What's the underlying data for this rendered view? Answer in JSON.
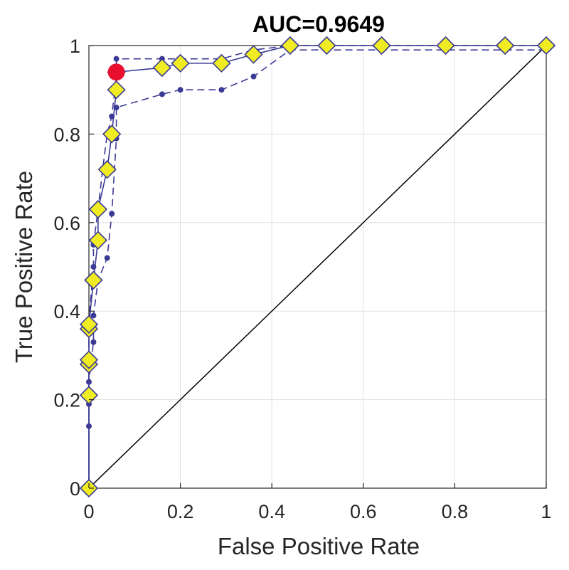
{
  "chart_data": {
    "type": "line",
    "title": "AUC=0.9649",
    "xlabel": "False Positive Rate",
    "ylabel": "True Positive Rate",
    "xlim": [
      0,
      1
    ],
    "ylim": [
      0,
      1
    ],
    "xticks": [
      "0",
      "0.2",
      "0.4",
      "0.6",
      "0.8",
      "1"
    ],
    "yticks": [
      "0",
      "0.2",
      "0.4",
      "0.6",
      "0.8",
      "1"
    ],
    "grid": true,
    "legend": "none",
    "colors": {
      "curve": "#3a3a96",
      "marker_fill": "#f0ec23",
      "operating_point": "#e8102e",
      "diagonal": "#000000",
      "grid": "#e0e0e0"
    },
    "series": [
      {
        "role": "roc-curve",
        "x": [
          0,
          0,
          0,
          0,
          0,
          0,
          0.01,
          0.01,
          0.02,
          0.02,
          0.04,
          0.05,
          0.06,
          0.06,
          0.16,
          0.2,
          0.29,
          0.36,
          0.44,
          0.52,
          0.64,
          0.78,
          0.91,
          1
        ],
        "y": [
          0,
          0.21,
          0.28,
          0.29,
          0.36,
          0.37,
          0.47,
          0.47,
          0.56,
          0.63,
          0.72,
          0.8,
          0.9,
          0.94,
          0.95,
          0.96,
          0.96,
          0.98,
          1,
          1,
          1,
          1,
          1,
          1
        ]
      },
      {
        "role": "upper-confidence-bound",
        "x": [
          0,
          0,
          0,
          0,
          0,
          0.01,
          0.01,
          0.02,
          0.03,
          0.04,
          0.05,
          0.06,
          0.06,
          0.16,
          0.2,
          0.29,
          0.36,
          0.44,
          0.52,
          0.64,
          0.78,
          0.91,
          1
        ],
        "y": [
          0.01,
          0.21,
          0.29,
          0.35,
          0.38,
          0.5,
          0.55,
          0.63,
          0.72,
          0.8,
          0.84,
          0.93,
          0.97,
          0.97,
          0.97,
          0.97,
          0.99,
          1,
          1,
          1,
          1,
          1,
          1
        ]
      },
      {
        "role": "lower-confidence-bound",
        "x": [
          0,
          0,
          0,
          0,
          0.01,
          0.01,
          0.02,
          0.02,
          0.04,
          0.05,
          0.06,
          0.06,
          0.16,
          0.2,
          0.29,
          0.36,
          0.44,
          0.52,
          0.64,
          0.78,
          0.91,
          1
        ],
        "y": [
          0,
          0.14,
          0.19,
          0.24,
          0.33,
          0.39,
          0.47,
          0.47,
          0.52,
          0.62,
          0.79,
          0.86,
          0.89,
          0.9,
          0.9,
          0.93,
          0.99,
          0.99,
          0.99,
          0.99,
          0.99,
          0.99
        ]
      }
    ],
    "diagonal": {
      "x": [
        0,
        1
      ],
      "y": [
        0,
        1
      ]
    },
    "operating_point": {
      "x": 0.06,
      "y": 0.94
    }
  }
}
